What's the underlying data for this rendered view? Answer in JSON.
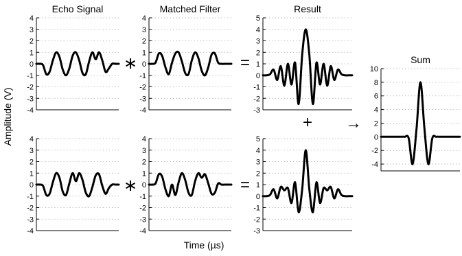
{
  "figure": {
    "ylabel": "Amplitude (V)",
    "xlabel": "Time (µs)",
    "operators": {
      "convolve": "∗",
      "equals": "=",
      "plus": "+",
      "arrow": "→"
    }
  },
  "chart_data": [
    {
      "id": "echo-top",
      "type": "line",
      "title": "Echo Signal",
      "ylim": [
        -4,
        4
      ],
      "yticks": [
        4,
        3,
        2,
        1,
        0,
        -1,
        -2,
        -3,
        -4
      ],
      "grid": "y-dotted",
      "series": [
        {
          "x": [
            0.0,
            0.4,
            0.8,
            1.2,
            1.6,
            2.0,
            2.4,
            2.8,
            3.2,
            3.6,
            4.0,
            4.4,
            4.8,
            5.2,
            5.6,
            6.0,
            6.4,
            6.8,
            7.2,
            7.6,
            8.0,
            8.4,
            8.8,
            9.2,
            9.6,
            10.0
          ],
          "y": [
            0,
            0,
            -0.1,
            -0.9,
            -0.7,
            0.3,
            1.0,
            0.6,
            -0.5,
            -1.0,
            -0.4,
            0.7,
            1.0,
            0.3,
            -0.8,
            -0.9,
            0.2,
            1.0,
            0.4,
            1.0,
            0.3,
            -0.7,
            -0.4,
            0,
            0,
            0
          ]
        }
      ]
    },
    {
      "id": "filter-top",
      "type": "line",
      "title": "Matched Filter",
      "ylim": [
        -4,
        4
      ],
      "yticks": [
        4,
        3,
        2,
        1,
        0,
        -1,
        -2,
        -3,
        -4
      ],
      "grid": "y-dotted",
      "series": [
        {
          "x": [
            0.0,
            0.4,
            0.8,
            1.2,
            1.6,
            2.0,
            2.4,
            2.8,
            3.2,
            3.6,
            4.0,
            4.4,
            4.8,
            5.2,
            5.6,
            6.0,
            6.4,
            6.8,
            7.2,
            7.6,
            8.0,
            8.4,
            8.8,
            9.2,
            9.6,
            10.0
          ],
          "y": [
            0,
            0,
            0.1,
            0.9,
            0.7,
            -0.3,
            -0.9,
            0.1,
            0.9,
            1.0,
            0.2,
            -0.8,
            -0.9,
            0.3,
            1.0,
            0.5,
            -0.6,
            -1.0,
            -0.3,
            0.8,
            0.9,
            0.1,
            0,
            0,
            0,
            0
          ]
        }
      ]
    },
    {
      "id": "result-top",
      "type": "line",
      "title": "Result",
      "ylim": [
        -3,
        5
      ],
      "yticks": [
        5,
        4,
        3,
        2,
        1,
        0,
        -1,
        -2,
        -3
      ],
      "grid": "y-dotted",
      "series": [
        {
          "x": [
            0.0,
            0.4,
            0.8,
            1.2,
            1.6,
            2.0,
            2.4,
            2.8,
            3.2,
            3.6,
            4.0,
            4.4,
            4.8,
            5.2,
            5.6,
            6.0,
            6.4,
            6.8,
            7.2,
            7.6,
            8.0,
            8.4,
            8.8,
            9.2,
            9.6,
            10.0
          ],
          "y": [
            0,
            0,
            0.1,
            0.5,
            -0.4,
            0.8,
            -0.9,
            1.0,
            -0.8,
            1.1,
            -2.5,
            1.8,
            4.0,
            1.8,
            -2.5,
            1.1,
            -0.8,
            1.0,
            -0.9,
            0.8,
            -0.4,
            0.5,
            0.1,
            0,
            0,
            0
          ]
        }
      ]
    },
    {
      "id": "echo-bottom",
      "type": "line",
      "title": "",
      "ylim": [
        -4,
        4
      ],
      "yticks": [
        4,
        3,
        2,
        1,
        0,
        -1,
        -2,
        -3,
        -4
      ],
      "grid": "y-dotted",
      "series": [
        {
          "x": [
            0.0,
            0.4,
            0.8,
            1.2,
            1.6,
            2.0,
            2.4,
            2.8,
            3.2,
            3.6,
            4.0,
            4.4,
            4.8,
            5.2,
            5.6,
            6.0,
            6.4,
            6.8,
            7.2,
            7.6,
            8.0,
            8.4,
            8.8,
            9.2,
            9.6,
            10.0
          ],
          "y": [
            0,
            0,
            -0.1,
            -0.9,
            -0.8,
            0.2,
            1.0,
            0.6,
            -0.6,
            -0.9,
            0.1,
            1.0,
            0.3,
            1.0,
            0.4,
            -0.7,
            -1.0,
            -0.2,
            0.8,
            0.9,
            -0.1,
            -0.8,
            -0.3,
            0,
            0,
            0
          ]
        }
      ]
    },
    {
      "id": "filter-bottom",
      "type": "line",
      "title": "",
      "ylim": [
        -4,
        4
      ],
      "yticks": [
        4,
        3,
        2,
        1,
        0,
        -1,
        -2,
        -3,
        -4
      ],
      "grid": "y-dotted",
      "series": [
        {
          "x": [
            0.0,
            0.4,
            0.8,
            1.2,
            1.6,
            2.0,
            2.4,
            2.8,
            3.2,
            3.6,
            4.0,
            4.4,
            4.8,
            5.2,
            5.6,
            6.0,
            6.4,
            6.8,
            7.2,
            7.6,
            8.0,
            8.4,
            8.8,
            9.2,
            9.6,
            10.0
          ],
          "y": [
            0,
            0,
            0.1,
            0.9,
            0.7,
            -0.4,
            -1.0,
            0,
            -0.9,
            0.2,
            1.0,
            0.4,
            -0.7,
            -0.9,
            0.3,
            1.0,
            0.6,
            0.9,
            0.1,
            -0.8,
            -0.7,
            0.1,
            0,
            0,
            0,
            0
          ]
        }
      ]
    },
    {
      "id": "result-bottom",
      "type": "line",
      "title": "",
      "ylim": [
        -3,
        5
      ],
      "yticks": [
        5,
        4,
        3,
        2,
        1,
        0,
        -1,
        -2,
        -3
      ],
      "grid": "y-dotted",
      "series": [
        {
          "x": [
            0.0,
            0.4,
            0.8,
            1.2,
            1.6,
            2.0,
            2.4,
            2.8,
            3.2,
            3.6,
            4.0,
            4.4,
            4.8,
            5.2,
            5.6,
            6.0,
            6.4,
            6.8,
            7.2,
            7.6,
            8.0,
            8.4,
            8.8,
            9.2,
            9.6,
            10.0
          ],
          "y": [
            0,
            0,
            0.1,
            0.6,
            -0.2,
            0.8,
            0.5,
            0.7,
            -0.6,
            1.2,
            -1.4,
            0.6,
            4.0,
            0.6,
            -1.4,
            1.2,
            -0.6,
            0.7,
            0.5,
            0.8,
            -0.2,
            0.6,
            0.1,
            0,
            0,
            0
          ]
        }
      ]
    },
    {
      "id": "sum",
      "type": "line",
      "title": "Sum",
      "ylim": [
        -5,
        10
      ],
      "yticks": [
        10,
        8,
        6,
        4,
        2,
        0,
        -2,
        -4
      ],
      "grid": "y-dotted",
      "series": [
        {
          "x": [
            0.0,
            0.5,
            1.0,
            1.5,
            2.0,
            2.5,
            3.0,
            3.5,
            4.0,
            4.5,
            5.0,
            5.5,
            6.0,
            6.5,
            7.0,
            7.5,
            8.0,
            8.5,
            9.0,
            9.5,
            10.0
          ],
          "y": [
            0,
            0,
            0,
            0,
            0,
            0,
            0,
            -0.2,
            -4.0,
            1.2,
            8.0,
            1.2,
            -4.0,
            -0.2,
            0,
            0,
            0,
            0,
            0,
            0,
            0
          ]
        }
      ]
    }
  ]
}
